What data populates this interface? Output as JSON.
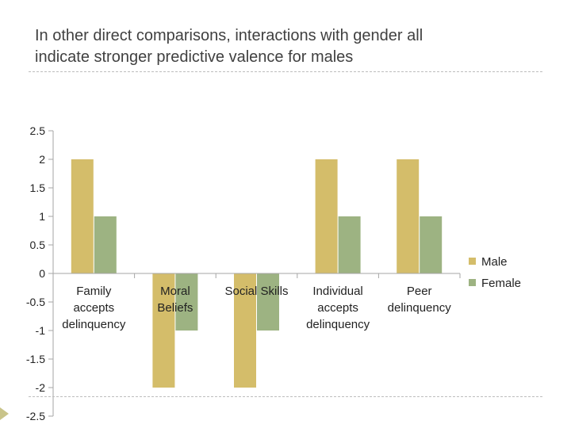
{
  "slide": {
    "title_line1": "In other direct comparisons, interactions with gender all",
    "title_line2": "indicate stronger predictive valence for males"
  },
  "chart_data": {
    "type": "bar",
    "title": "In other direct comparisons, interactions with gender all indicate stronger predictive valence for males",
    "categories": [
      [
        "Family",
        "accepts",
        "delinquency"
      ],
      [
        "Moral",
        "Beliefs"
      ],
      [
        "Social Skills"
      ],
      [
        "Individual",
        "accepts",
        "delinquency"
      ],
      [
        "Peer",
        "delinquency"
      ]
    ],
    "series": [
      {
        "name": "Male",
        "color": "#d4bd6a",
        "values": [
          2,
          -2,
          -2,
          2,
          2
        ]
      },
      {
        "name": "Female",
        "color": "#9db382",
        "values": [
          1,
          -1,
          -1,
          1,
          1
        ]
      }
    ],
    "yticks": [
      "2.5",
      "2",
      "1.5",
      "1",
      "0.5",
      "0",
      "-0.5",
      "-1",
      "-1.5",
      "-2",
      "-2.5"
    ],
    "ylim": [
      -2.5,
      2.5
    ],
    "xlabel": "",
    "ylabel": "",
    "grid": false,
    "legend_position": "right"
  }
}
